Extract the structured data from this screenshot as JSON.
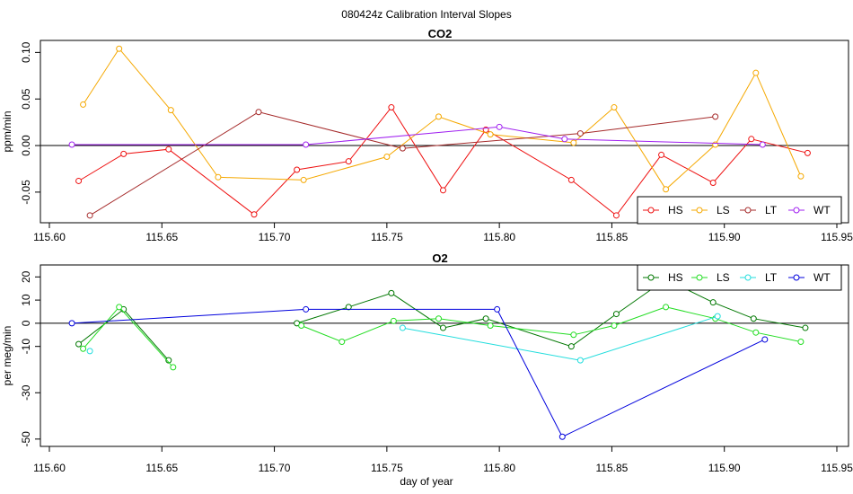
{
  "main_title": "080424z   Calibration Interval Slopes",
  "xlabel": "day of year",
  "chart_data": [
    {
      "type": "line",
      "title": "CO2",
      "ylabel": "ppm/min",
      "xlim": [
        115.6,
        115.95
      ],
      "ylim": [
        -0.08,
        0.11
      ],
      "xticks": [
        115.6,
        115.65,
        115.7,
        115.75,
        115.8,
        115.85,
        115.9,
        115.95
      ],
      "xtick_labels": [
        "115.60",
        "115.65",
        "115.70",
        "115.75",
        "115.80",
        "115.85",
        "115.90",
        "115.95"
      ],
      "yticks": [
        -0.05,
        0.0,
        0.05,
        0.1
      ],
      "ytick_labels": [
        "-0.05",
        "0.00",
        "0.05",
        "0.10"
      ],
      "hline": 0,
      "legend_position": "bottom-right",
      "legend": [
        "HS",
        "LS",
        "LT",
        "WT"
      ],
      "series": [
        {
          "name": "HS",
          "color": "#ee1111",
          "marker": "circle",
          "x": [
            115.613,
            115.633,
            115.653,
            115.691,
            115.71,
            115.733,
            115.752,
            115.775,
            115.794,
            115.832,
            115.852,
            115.872,
            115.895,
            115.912,
            115.937
          ],
          "y": [
            -0.038,
            -0.009,
            -0.004,
            -0.074,
            -0.026,
            -0.017,
            0.041,
            -0.048,
            0.017,
            -0.037,
            -0.075,
            -0.01,
            -0.04,
            0.007,
            -0.008
          ]
        },
        {
          "name": "LS",
          "color": "#f5a800",
          "marker": "circle",
          "x": [
            115.615,
            115.631,
            115.654,
            115.675,
            115.713,
            115.75,
            115.773,
            115.796,
            115.833,
            115.851,
            115.874,
            115.896,
            115.914,
            115.934
          ],
          "y": [
            0.044,
            0.104,
            0.038,
            -0.034,
            -0.037,
            -0.012,
            0.031,
            0.012,
            0.003,
            0.041,
            -0.047,
            0.001,
            0.078,
            -0.033
          ]
        },
        {
          "name": "LT",
          "color": "#a52a2a",
          "marker": "circle",
          "x": [
            115.618,
            115.693,
            115.757,
            115.836,
            115.896
          ],
          "y": [
            -0.075,
            0.036,
            -0.003,
            0.013,
            0.031
          ]
        },
        {
          "name": "WT",
          "color": "#a020f0",
          "marker": "circle",
          "x": [
            115.61,
            115.714,
            115.8,
            115.829,
            115.917
          ],
          "y": [
            0.001,
            0.001,
            0.02,
            0.007,
            0.001
          ]
        }
      ]
    },
    {
      "type": "line",
      "title": "O2",
      "ylabel": "per meg/min",
      "xlim": [
        115.6,
        115.95
      ],
      "ylim": [
        -52,
        24
      ],
      "xticks": [
        115.6,
        115.65,
        115.7,
        115.75,
        115.8,
        115.85,
        115.9,
        115.95
      ],
      "xtick_labels": [
        "115.60",
        "115.65",
        "115.70",
        "115.75",
        "115.80",
        "115.85",
        "115.90",
        "115.95"
      ],
      "yticks": [
        -50,
        -30,
        -10,
        0,
        10,
        20
      ],
      "ytick_labels": [
        "-50",
        "-30",
        "-10",
        "0",
        "10",
        "20"
      ],
      "hline": 0,
      "legend_position": "top-right",
      "legend": [
        "HS",
        "LS",
        "LT",
        "WT"
      ],
      "series": [
        {
          "name": "HS",
          "color": "#007700",
          "marker": "circle",
          "segments": [
            {
              "x": [
                115.613,
                115.633,
                115.653
              ],
              "y": [
                -9,
                6,
                -16
              ]
            },
            {
              "x": [
                115.71,
                115.733,
                115.752,
                115.775,
                115.794,
                115.832,
                115.852,
                115.874,
                115.895,
                115.913,
                115.936
              ],
              "y": [
                0,
                7,
                13,
                -2,
                2,
                -10,
                4,
                19,
                9,
                2,
                -2
              ]
            }
          ]
        },
        {
          "name": "LS",
          "color": "#22dd22",
          "marker": "circle",
          "segments": [
            {
              "x": [
                115.615,
                115.631,
                115.655
              ],
              "y": [
                -11,
                7,
                -19
              ]
            },
            {
              "x": [
                115.712,
                115.73,
                115.753,
                115.773,
                115.796,
                115.833,
                115.851,
                115.874,
                115.896,
                115.914,
                115.934
              ],
              "y": [
                -1,
                -8,
                1,
                2,
                -1,
                -5,
                -1,
                7,
                2,
                -4,
                -8
              ]
            }
          ]
        },
        {
          "name": "LT",
          "color": "#22dddd",
          "marker": "circle",
          "segments": [
            {
              "x": [
                115.618
              ],
              "y": [
                -12
              ]
            },
            {
              "x": [
                115.757,
                115.836,
                115.897
              ],
              "y": [
                -2,
                -16,
                3
              ]
            }
          ]
        },
        {
          "name": "WT",
          "color": "#0000dd",
          "marker": "circle",
          "segments": [
            {
              "x": [
                115.61,
                115.714,
                115.799,
                115.828,
                115.918
              ],
              "y": [
                0,
                6,
                6,
                -49,
                -7
              ]
            }
          ]
        }
      ]
    }
  ]
}
